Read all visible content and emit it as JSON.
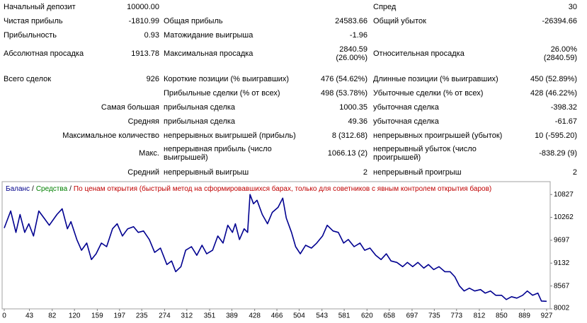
{
  "report": {
    "rows": [
      {
        "c1": "Начальный депозит",
        "v1": "10000.00",
        "c3": "Спред",
        "v3": "30"
      },
      {
        "c1": "Чистая прибыль",
        "v1": "-1810.99",
        "c2": "Общая прибыль",
        "v2": "24583.66",
        "c3": "Общий убыток",
        "v3": "-26394.66"
      },
      {
        "c1": "Прибыльность",
        "v1": "0.93",
        "c2": "Матожидание выигрыша",
        "v2": "-1.96"
      },
      {
        "c1": "Абсолютная просадка",
        "v1": "1913.78",
        "c2": "Максимальная просадка",
        "v2": "2840.59 (26.00%)",
        "c3": "Относительная просадка",
        "v3": "26.00% (2840.59)"
      },
      {
        "c1": "Всего сделок",
        "v1": "926",
        "c2": "Короткие позиции (% выигравших)",
        "v2": "476 (54.62%)",
        "c3": "Длинные позиции (% выигравших)",
        "v3": "450 (52.89%)"
      },
      {
        "c2": "Прибыльные сделки (% от всех)",
        "v2": "498 (53.78%)",
        "c3": "Убыточные сделки (% от всех)",
        "v3": "428 (46.22%)"
      },
      {
        "c1": "Самая большая",
        "c2": "прибыльная сделка",
        "v2": "1000.35",
        "c3": "убыточная сделка",
        "v3": "-398.32"
      },
      {
        "c1": "Средняя",
        "c2": "прибыльная сделка",
        "v2": "49.36",
        "c3": "убыточная сделка",
        "v3": "-61.67"
      },
      {
        "c1": "Максимальное количество",
        "c2": "непрерывных выигрышей (прибыль)",
        "v2": "8 (312.68)",
        "c3": "непрерывных проигрышей (убыток)",
        "v3": "10 (-595.20)"
      },
      {
        "c1": "Макс.",
        "c2": "непрерывная прибыль (число выигрышей)",
        "v2": "1066.13 (2)",
        "c3": "непрерывный убыток (число проигрышей)",
        "v3": "-838.29 (9)"
      },
      {
        "c1": "Средний",
        "c2": "непрерывный выигрыш",
        "v2": "2",
        "c3": "непрерывный проигрыш",
        "v3": "2"
      }
    ]
  },
  "chart_data": {
    "type": "line",
    "legend": {
      "separator": "/",
      "items": [
        {
          "text": "Баланс",
          "color": "#00008b"
        },
        {
          "text": "Средства",
          "color": "#008000"
        },
        {
          "text": "По ценам открытия (быстрый метод на сформировавшихся барах, только для советников с явным контролем открытия баров)",
          "color": "#c00000"
        }
      ]
    },
    "xlim": [
      0,
      927
    ],
    "xticks": [
      0,
      43,
      82,
      120,
      159,
      197,
      235,
      274,
      312,
      351,
      389,
      428,
      466,
      504,
      543,
      581,
      620,
      658,
      697,
      735,
      773,
      812,
      850,
      889,
      927
    ],
    "ylim": [
      8002,
      11145
    ],
    "yticks": [
      8002,
      8567,
      9132,
      9697,
      10262,
      10827
    ],
    "series": [
      {
        "color": "#000090",
        "x": [
          0,
          11,
          20,
          27,
          35,
          42,
          50,
          59,
          68,
          77,
          90,
          99,
          108,
          114,
          124,
          132,
          141,
          149,
          157,
          166,
          175,
          185,
          193,
          202,
          211,
          221,
          229,
          238,
          248,
          257,
          267,
          278,
          286,
          293,
          302,
          310,
          320,
          329,
          338,
          346,
          356,
          365,
          374,
          382,
          390,
          395,
          402,
          410,
          416,
          420,
          426,
          432,
          441,
          450,
          458,
          468,
          476,
          482,
          491,
          498,
          506,
          515,
          525,
          534,
          544,
          552,
          562,
          571,
          580,
          588,
          598,
          608,
          616,
          625,
          635,
          644,
          653,
          661,
          671,
          681,
          689,
          698,
          707,
          717,
          725,
          734,
          743,
          753,
          762,
          770,
          778,
          786,
          795,
          804,
          814,
          822,
          831,
          840,
          850,
          858,
          867,
          876,
          886,
          894,
          903,
          912,
          918,
          927
        ],
        "values": [
          10000,
          10421,
          9892,
          10333,
          9892,
          10104,
          9803,
          10421,
          10245,
          10068,
          10333,
          10474,
          9980,
          10157,
          9715,
          9450,
          9627,
          9221,
          9362,
          9627,
          9538,
          9980,
          10104,
          9803,
          9980,
          10033,
          9892,
          9927,
          9715,
          9397,
          9503,
          9097,
          9185,
          8920,
          9044,
          9450,
          9538,
          9326,
          9574,
          9362,
          9450,
          9803,
          9627,
          10068,
          9892,
          10104,
          9715,
          9980,
          9892,
          10828,
          10598,
          10686,
          10333,
          10104,
          10386,
          10510,
          10739,
          10245,
          9892,
          9538,
          9362,
          9574,
          9503,
          9627,
          9803,
          10068,
          9927,
          9892,
          9627,
          9715,
          9538,
          9627,
          9450,
          9503,
          9326,
          9221,
          9362,
          9185,
          9150,
          9044,
          9150,
          9044,
          9150,
          9009,
          9097,
          8973,
          9044,
          8920,
          8920,
          8797,
          8567,
          8443,
          8514,
          8443,
          8479,
          8391,
          8443,
          8338,
          8338,
          8232,
          8302,
          8267,
          8338,
          8443,
          8338,
          8391,
          8196,
          8189
        ]
      }
    ]
  }
}
